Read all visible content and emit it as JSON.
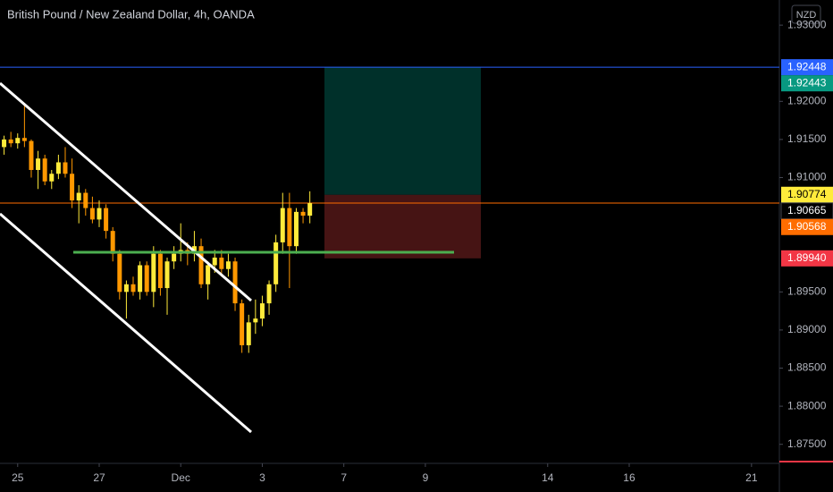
{
  "chart_data": {
    "type": "candlestick",
    "title": "British Pound / New Zealand Dollar, 4h, OANDA",
    "currency": "NZD",
    "up_color": "#ffeb3b",
    "down_color": "#ff9800",
    "x": [
      -2,
      -1,
      0,
      1,
      2,
      3,
      4,
      5,
      6,
      7,
      8,
      9,
      10,
      11,
      12,
      13,
      14,
      15,
      16,
      17,
      18,
      19,
      20,
      21,
      22,
      23,
      24,
      25,
      26,
      27,
      28,
      29,
      30,
      31,
      32,
      33,
      34,
      35,
      36,
      37,
      38,
      39,
      40,
      41,
      42,
      43
    ],
    "open": [
      1.914,
      1.915,
      1.9145,
      1.9152,
      1.9148,
      1.911,
      1.9125,
      1.9095,
      1.9105,
      1.912,
      1.9105,
      1.907,
      1.908,
      1.906,
      1.9045,
      1.906,
      1.903,
      1.9,
      1.895,
      1.896,
      1.895,
      1.8985,
      1.895,
      1.9,
      1.8955,
      1.899,
      1.9,
      1.9005,
      1.9,
      1.901,
      1.896,
      1.8985,
      1.8995,
      1.898,
      1.899,
      1.8935,
      1.888,
      1.891,
      1.8915,
      1.8935,
      1.896,
      1.9015,
      1.906,
      1.901,
      1.9055,
      1.905
    ],
    "high": [
      1.9155,
      1.916,
      1.9158,
      1.9195,
      1.915,
      1.9135,
      1.913,
      1.911,
      1.913,
      1.914,
      1.9125,
      1.909,
      1.9085,
      1.9075,
      1.907,
      1.9065,
      1.9035,
      1.9005,
      1.8965,
      1.897,
      1.899,
      1.899,
      1.901,
      1.9005,
      1.8995,
      1.901,
      1.904,
      1.9015,
      1.903,
      1.902,
      1.899,
      1.9005,
      1.9005,
      1.9,
      1.8995,
      1.894,
      1.892,
      1.894,
      1.8945,
      1.8965,
      1.9025,
      1.908,
      1.908,
      1.906,
      1.906,
      1.9082
    ],
    "low": [
      1.913,
      1.914,
      1.9138,
      1.914,
      1.91,
      1.9085,
      1.909,
      1.9085,
      1.9098,
      1.91,
      1.906,
      1.904,
      1.905,
      1.904,
      1.9035,
      1.902,
      1.899,
      1.894,
      1.8915,
      1.8945,
      1.894,
      1.8945,
      1.893,
      1.8945,
      1.892,
      1.898,
      1.899,
      1.8985,
      1.899,
      1.8955,
      1.894,
      1.8975,
      1.897,
      1.897,
      1.8925,
      1.887,
      1.887,
      1.8895,
      1.8905,
      1.892,
      1.895,
      1.9,
      1.8955,
      1.9,
      1.904,
      1.904
    ],
    "close": [
      1.915,
      1.9145,
      1.9152,
      1.9148,
      1.911,
      1.9125,
      1.9095,
      1.9105,
      1.912,
      1.9105,
      1.907,
      1.908,
      1.906,
      1.9045,
      1.906,
      1.903,
      1.9,
      1.895,
      1.896,
      1.895,
      1.8985,
      1.895,
      1.9,
      1.8955,
      1.899,
      1.9,
      1.9005,
      1.9,
      1.901,
      1.896,
      1.8985,
      1.8995,
      1.898,
      1.899,
      1.8935,
      1.888,
      1.891,
      1.8915,
      1.8935,
      1.896,
      1.9015,
      1.906,
      1.901,
      1.9055,
      1.905,
      1.90665
    ],
    "xlim": [
      -2.6,
      112.1
    ],
    "ylim": [
      1.8725,
      1.9333
    ],
    "xticks": [
      {
        "value": 0,
        "label": "25"
      },
      {
        "value": 12,
        "label": "27"
      },
      {
        "value": 24,
        "label": "Dec"
      },
      {
        "value": 36,
        "label": "3"
      },
      {
        "value": 48,
        "label": "7"
      },
      {
        "value": 60,
        "label": "9"
      },
      {
        "value": 78,
        "label": "14"
      },
      {
        "value": 90,
        "label": "16"
      },
      {
        "value": 108,
        "label": "21"
      }
    ],
    "yticks": [
      {
        "value": 1.93,
        "label": "1.93000"
      },
      {
        "value": 1.92,
        "label": "1.92000"
      },
      {
        "value": 1.915,
        "label": "1.91500"
      },
      {
        "value": 1.91,
        "label": "1.91000"
      },
      {
        "value": 1.895,
        "label": "1.89500"
      },
      {
        "value": 1.89,
        "label": "1.89000"
      },
      {
        "value": 1.885,
        "label": "1.88500"
      },
      {
        "value": 1.88,
        "label": "1.88000"
      },
      {
        "value": 1.875,
        "label": "1.87500"
      }
    ],
    "price_labels": [
      {
        "value": 1.92448,
        "label": "1.92448",
        "color": "#2962ff",
        "text_color": "#ffffff"
      },
      {
        "value": 1.92443,
        "label": "1.92443",
        "color": "#089981",
        "text_color": "#ffffff"
      },
      {
        "value": 1.90774,
        "label": "1.90774",
        "color": "#ffeb3b",
        "text_color": "#000000"
      },
      {
        "value": 1.90665,
        "label": "1.90665",
        "color": "#000000",
        "text_color": "#ffffff"
      },
      {
        "value": 1.90568,
        "label": "1.90568",
        "color": "#ff6d00",
        "text_color": "#ffffff"
      },
      {
        "value": 1.8994,
        "label": "1.89940",
        "color": "#f23645",
        "text_color": "#ffffff"
      }
    ]
  }
}
